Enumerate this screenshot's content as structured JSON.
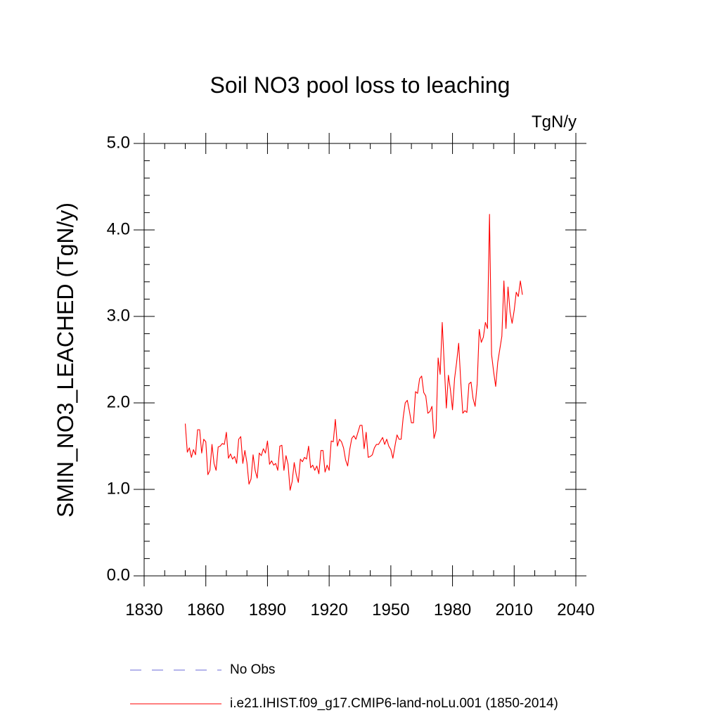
{
  "chart_data": {
    "type": "line",
    "title": "Soil NO3 pool loss to leaching",
    "units": "TgN/y",
    "ylabel": "SMIN_NO3_LEACHED  (TgN/y)",
    "xlabel": "",
    "xlim": [
      1830,
      2040
    ],
    "ylim": [
      0.0,
      5.0
    ],
    "x_ticks": [
      1830,
      1860,
      1890,
      1920,
      1950,
      1980,
      2010,
      2040
    ],
    "x_tick_labels": [
      "1830",
      "1860",
      "1890",
      "1920",
      "1950",
      "1980",
      "2010",
      "2040"
    ],
    "y_ticks": [
      0.0,
      1.0,
      2.0,
      3.0,
      4.0,
      5.0
    ],
    "y_tick_labels": [
      "0.0",
      "1.0",
      "2.0",
      "3.0",
      "4.0",
      "5.0"
    ],
    "grid": false,
    "legend_position": "bottom",
    "series": [
      {
        "name": "No Obs",
        "color": "#6a6ad8",
        "style": "dashed",
        "x": [],
        "values": []
      },
      {
        "name": "i.e21.IHIST.f09_g17.CMIP6-land-noLu.001 (1850-2014)",
        "color": "#ff0000",
        "style": "solid",
        "x": [
          1850,
          1851,
          1852,
          1853,
          1854,
          1855,
          1856,
          1857,
          1858,
          1859,
          1860,
          1861,
          1862,
          1863,
          1864,
          1865,
          1866,
          1867,
          1868,
          1869,
          1870,
          1871,
          1872,
          1873,
          1874,
          1875,
          1876,
          1877,
          1878,
          1879,
          1880,
          1881,
          1882,
          1883,
          1884,
          1885,
          1886,
          1887,
          1888,
          1889,
          1890,
          1891,
          1892,
          1893,
          1894,
          1895,
          1896,
          1897,
          1898,
          1899,
          1900,
          1901,
          1902,
          1903,
          1904,
          1905,
          1906,
          1907,
          1908,
          1909,
          1910,
          1911,
          1912,
          1913,
          1914,
          1915,
          1916,
          1917,
          1918,
          1919,
          1920,
          1921,
          1922,
          1923,
          1924,
          1925,
          1926,
          1927,
          1928,
          1929,
          1930,
          1931,
          1932,
          1933,
          1934,
          1935,
          1936,
          1937,
          1938,
          1939,
          1940,
          1941,
          1942,
          1943,
          1944,
          1945,
          1946,
          1947,
          1948,
          1949,
          1950,
          1951,
          1952,
          1953,
          1954,
          1955,
          1956,
          1957,
          1958,
          1959,
          1960,
          1961,
          1962,
          1963,
          1964,
          1965,
          1966,
          1967,
          1968,
          1969,
          1970,
          1971,
          1972,
          1973,
          1974,
          1975,
          1976,
          1977,
          1978,
          1979,
          1980,
          1981,
          1982,
          1983,
          1984,
          1985,
          1986,
          1987,
          1988,
          1989,
          1990,
          1991,
          1992,
          1993,
          1994,
          1995,
          1996,
          1997,
          1998,
          1999,
          2000,
          2001,
          2002,
          2003,
          2004,
          2005,
          2006,
          2007,
          2008,
          2009,
          2010,
          2011,
          2012,
          2013,
          2014
        ],
        "values": [
          1.76,
          1.43,
          1.48,
          1.37,
          1.46,
          1.4,
          1.69,
          1.69,
          1.42,
          1.58,
          1.55,
          1.17,
          1.22,
          1.52,
          1.3,
          1.22,
          1.49,
          1.5,
          1.53,
          1.52,
          1.66,
          1.36,
          1.41,
          1.35,
          1.38,
          1.3,
          1.58,
          1.61,
          1.3,
          1.45,
          1.31,
          1.06,
          1.12,
          1.4,
          1.22,
          1.13,
          1.42,
          1.39,
          1.47,
          1.42,
          1.56,
          1.29,
          1.33,
          1.28,
          1.3,
          1.22,
          1.5,
          1.51,
          1.22,
          1.39,
          1.29,
          0.99,
          1.09,
          1.31,
          1.17,
          1.08,
          1.35,
          1.32,
          1.37,
          1.35,
          1.5,
          1.25,
          1.28,
          1.22,
          1.27,
          1.18,
          1.45,
          1.45,
          1.2,
          1.28,
          1.22,
          1.56,
          1.55,
          1.81,
          1.5,
          1.58,
          1.55,
          1.48,
          1.34,
          1.27,
          1.46,
          1.59,
          1.62,
          1.58,
          1.66,
          1.74,
          1.74,
          1.47,
          1.66,
          1.37,
          1.38,
          1.4,
          1.48,
          1.52,
          1.52,
          1.56,
          1.6,
          1.52,
          1.58,
          1.5,
          1.46,
          1.36,
          1.5,
          1.63,
          1.58,
          1.58,
          1.83,
          2.0,
          2.03,
          1.91,
          1.77,
          1.77,
          2.13,
          2.11,
          2.28,
          2.31,
          2.12,
          2.08,
          1.88,
          1.9,
          1.96,
          1.59,
          1.68,
          2.52,
          2.33,
          2.93,
          2.43,
          1.94,
          2.32,
          2.15,
          1.92,
          2.28,
          2.47,
          2.69,
          2.25,
          1.88,
          1.91,
          1.89,
          2.22,
          2.24,
          2.05,
          1.96,
          2.22,
          2.85,
          2.7,
          2.76,
          2.93,
          2.86,
          4.18,
          2.56,
          2.36,
          2.19,
          2.47,
          2.62,
          2.77,
          3.41,
          2.86,
          3.34,
          3.05,
          2.92,
          3.07,
          3.28,
          3.23,
          3.41,
          3.25
        ]
      }
    ]
  }
}
